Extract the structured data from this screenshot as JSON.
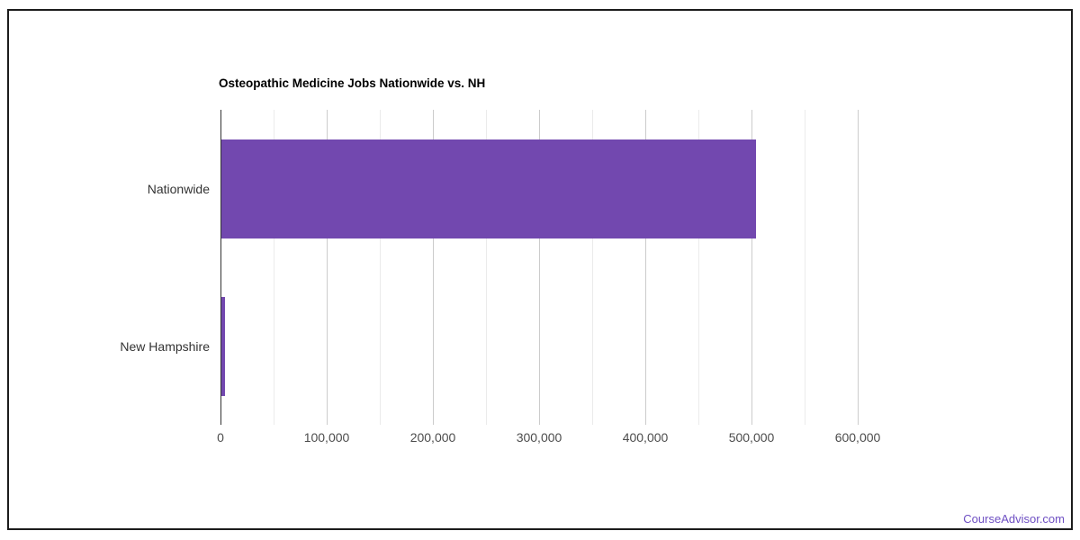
{
  "page": {
    "footer_link": "CourseAdvisor.com"
  },
  "colors": {
    "bar": "#7248af",
    "axis_line": "#333333",
    "gridline_major": "#cccccc",
    "gridline_minor": "#ebebeb",
    "title_text": "#000000",
    "category_label_text": "#333333",
    "tick_label_text": "#4d4d4d",
    "footer_link_text": "#6e4fc3",
    "frame_border": "#1c1c1c",
    "background": "#ffffff"
  },
  "chart_data": {
    "type": "bar",
    "orientation": "horizontal",
    "title": "Osteopathic Medicine Jobs Nationwide vs. NH",
    "categories": [
      "Nationwide",
      "New Hampshire"
    ],
    "values": [
      503000,
      3000
    ],
    "xlabel": "",
    "ylabel": "",
    "xlim": [
      0,
      600000
    ],
    "x_major_tick_interval": 100000,
    "x_minor_tick_interval": 50000,
    "x_tick_labels": [
      "0",
      "100,000",
      "200,000",
      "300,000",
      "400,000",
      "500,000",
      "600,000"
    ],
    "grid": true,
    "legend": "none"
  }
}
